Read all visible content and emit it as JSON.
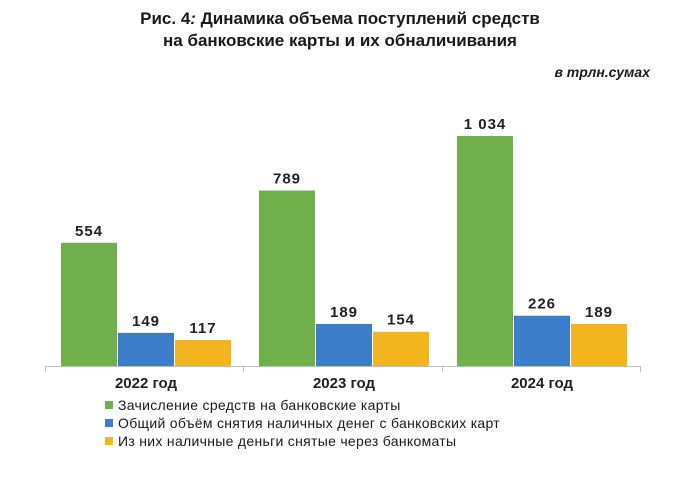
{
  "title_line1_prefix": "Рис. 4",
  "title_line1_sep": ":",
  "title_line1_text": " Динамика объема поступлений средств",
  "title_line2": "на банковские карты и их обналичивания",
  "unit_label": "в трлн.сумах",
  "chart_data": {
    "type": "bar",
    "title": "Рис. 4: Динамика объема поступлений средств на банковские карты и их обналичивания",
    "ylabel": "в трлн.сумах",
    "xlabel": "",
    "categories": [
      "2022 год",
      "2023 год",
      "2024 год"
    ],
    "ylim": [
      0,
      1100
    ],
    "series": [
      {
        "name": "Зачисление средств на банковские карты",
        "color": "#70b04a",
        "values": [
          554,
          789,
          1034
        ],
        "labels": [
          "554",
          "789",
          "1 034"
        ]
      },
      {
        "name": "Общий объём снятия наличных денег с банковских карт",
        "color": "#3b7dc8",
        "values": [
          149,
          189,
          226
        ],
        "labels": [
          "149",
          "189",
          "226"
        ]
      },
      {
        "name": "Из них наличные деньги снятые через банкоматы",
        "color": "#f2b51d",
        "values": [
          117,
          154,
          189
        ],
        "labels": [
          "117",
          "154",
          "189"
        ]
      }
    ],
    "grid": false,
    "legend": "bottom"
  }
}
